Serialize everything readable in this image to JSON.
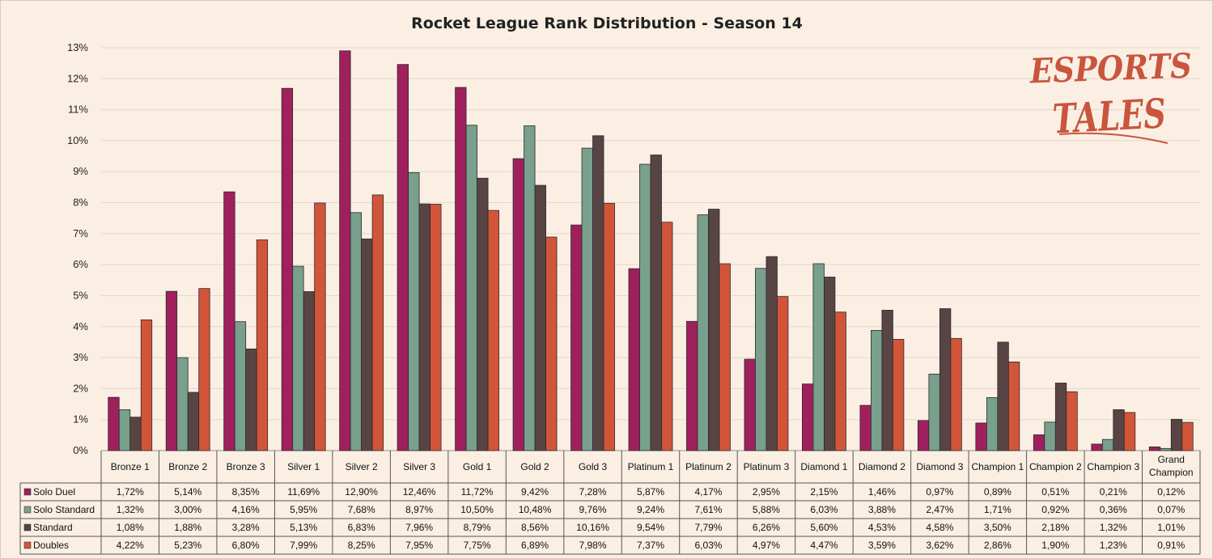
{
  "chart_data": {
    "type": "bar",
    "title": "Rocket League Rank Distribution - Season 14",
    "categories": [
      "Bronze 1",
      "Bronze 2",
      "Bronze 3",
      "Silver 1",
      "Silver 2",
      "Silver 3",
      "Gold 1",
      "Gold 2",
      "Gold 3",
      "Platinum 1",
      "Platinum 2",
      "Platinum 3",
      "Diamond 1",
      "Diamond 2",
      "Diamond 3",
      "Champion 1",
      "Champion 2",
      "Champion 3",
      "Grand Champion"
    ],
    "category_lines": [
      [
        "Bronze 1"
      ],
      [
        "Bronze 2"
      ],
      [
        "Bronze 3"
      ],
      [
        "Silver 1"
      ],
      [
        "Silver 2"
      ],
      [
        "Silver 3"
      ],
      [
        "Gold 1"
      ],
      [
        "Gold 2"
      ],
      [
        "Gold 3"
      ],
      [
        "Platinum 1"
      ],
      [
        "Platinum 2"
      ],
      [
        "Platinum 3"
      ],
      [
        "Diamond 1"
      ],
      [
        "Diamond 2"
      ],
      [
        "Diamond 3"
      ],
      [
        "Champion 1"
      ],
      [
        "Champion 2"
      ],
      [
        "Champion 3"
      ],
      [
        "Grand",
        "Champion"
      ]
    ],
    "series": [
      {
        "name": "Solo Duel",
        "color": "#a0205e",
        "values": [
          1.72,
          5.14,
          8.35,
          11.69,
          12.9,
          12.46,
          11.72,
          9.42,
          7.28,
          5.87,
          4.17,
          2.95,
          2.15,
          1.46,
          0.97,
          0.89,
          0.51,
          0.21,
          0.12
        ],
        "labels": [
          "1,72%",
          "5,14%",
          "8,35%",
          "11,69%",
          "12,90%",
          "12,46%",
          "11,72%",
          "9,42%",
          "7,28%",
          "5,87%",
          "4,17%",
          "2,95%",
          "2,15%",
          "1,46%",
          "0,97%",
          "0,89%",
          "0,51%",
          "0,21%",
          "0,12%"
        ]
      },
      {
        "name": "Solo Standard",
        "color": "#78a08c",
        "values": [
          1.32,
          3.0,
          4.16,
          5.95,
          7.68,
          8.97,
          10.5,
          10.48,
          9.76,
          9.24,
          7.61,
          5.88,
          6.03,
          3.88,
          2.47,
          1.71,
          0.92,
          0.36,
          0.07
        ],
        "labels": [
          "1,32%",
          "3,00%",
          "4,16%",
          "5,95%",
          "7,68%",
          "8,97%",
          "10,50%",
          "10,48%",
          "9,76%",
          "9,24%",
          "7,61%",
          "5,88%",
          "6,03%",
          "3,88%",
          "2,47%",
          "1,71%",
          "0,92%",
          "0,36%",
          "0,07%"
        ]
      },
      {
        "name": "Standard",
        "color": "#594444",
        "values": [
          1.08,
          1.88,
          3.28,
          5.13,
          6.83,
          7.96,
          8.79,
          8.56,
          10.16,
          9.54,
          7.79,
          6.26,
          5.6,
          4.53,
          4.58,
          3.5,
          2.18,
          1.32,
          1.01
        ],
        "labels": [
          "1,08%",
          "1,88%",
          "3,28%",
          "5,13%",
          "6,83%",
          "7,96%",
          "8,79%",
          "8,56%",
          "10,16%",
          "9,54%",
          "7,79%",
          "6,26%",
          "5,60%",
          "4,53%",
          "4,58%",
          "3,50%",
          "2,18%",
          "1,32%",
          "1,01%"
        ]
      },
      {
        "name": "Doubles",
        "color": "#d2553a",
        "values": [
          4.22,
          5.23,
          6.8,
          7.99,
          8.25,
          7.95,
          7.75,
          6.89,
          7.98,
          7.37,
          6.03,
          4.97,
          4.47,
          3.59,
          3.62,
          2.86,
          1.9,
          1.23,
          0.91
        ],
        "labels": [
          "4,22%",
          "5,23%",
          "6,80%",
          "7,99%",
          "8,25%",
          "7,95%",
          "7,75%",
          "6,89%",
          "7,98%",
          "7,37%",
          "6,03%",
          "4,97%",
          "4,47%",
          "3,59%",
          "3,62%",
          "2,86%",
          "1,90%",
          "1,23%",
          "0,91%"
        ]
      }
    ],
    "ylim": [
      0,
      13
    ],
    "yticks": [
      "0%",
      "1%",
      "2%",
      "3%",
      "4%",
      "5%",
      "6%",
      "7%",
      "8%",
      "9%",
      "10%",
      "11%",
      "12%",
      "13%"
    ],
    "grid": true,
    "legend": "data table below chart",
    "xlabel": "",
    "ylabel": ""
  },
  "watermark": {
    "line1": "ESPORTS",
    "line2": "TALES"
  }
}
